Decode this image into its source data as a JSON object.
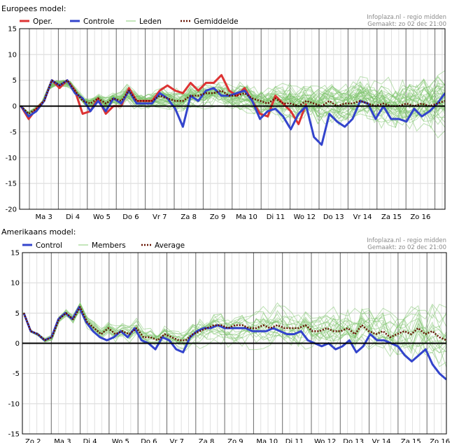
{
  "chart_data": [
    {
      "type": "line",
      "title": "Europees model:",
      "credit_line1": "Infoplaza.nl - regio midden",
      "credit_line2": "Gemaakt: zo 02 dec 21:00",
      "ylim": [
        -20,
        15
      ],
      "yticks": [
        15,
        10,
        5,
        0,
        -5,
        -10,
        -15,
        -20
      ],
      "day_labels": [
        "Ma 3",
        "Di 4",
        "Wo 5",
        "Do 6",
        "Vr 7",
        "Za 8",
        "Zo 9",
        "Ma 10",
        "Di 11",
        "Wo 12",
        "Do 13",
        "Vr 14",
        "Za 15",
        "Zo 16"
      ],
      "grid": true,
      "legend": [
        {
          "label": "Oper.",
          "color": "#dd3333",
          "style": "solid"
        },
        {
          "label": "Controle",
          "color": "#3344cc",
          "style": "solid"
        },
        {
          "label": "Leden",
          "color": "#88cc77",
          "style": "thin"
        },
        {
          "label": "Gemiddelde",
          "color": "#661100",
          "style": "dotted"
        }
      ],
      "series": [
        {
          "name": "Oper.",
          "color": "#dd3333",
          "values": [
            0,
            -2.5,
            -0.5,
            1,
            5,
            3.5,
            5,
            3,
            -1.5,
            -1,
            1.5,
            -1.5,
            0,
            0,
            3.5,
            1,
            1,
            1,
            3,
            4,
            3,
            2.5,
            4.5,
            3,
            4.5,
            4.5,
            6,
            3,
            2,
            3.5,
            1,
            -1.5,
            -2,
            2,
            0.5,
            -1,
            -3.5,
            0.5
          ]
        },
        {
          "name": "Controle",
          "color": "#3344cc",
          "values": [
            0,
            -2,
            -1,
            1,
            5,
            4,
            5,
            2.5,
            1.5,
            -1,
            1,
            -1,
            1.5,
            0.5,
            3,
            0.5,
            0.5,
            0.5,
            2.5,
            1.5,
            -0.5,
            -4,
            2,
            1,
            3,
            3.5,
            2,
            2,
            2.5,
            3,
            1,
            -2.5,
            -1,
            -0.5,
            -2,
            -4.5,
            -1.5,
            0,
            -6,
            -7.5,
            -1.5,
            -3,
            -4,
            -2.5,
            1,
            0.5,
            -2.5,
            0,
            -2.5,
            -2.5,
            -3,
            -0.5,
            -2,
            -1,
            0.5,
            2.5
          ]
        },
        {
          "name": "Gemiddelde",
          "color": "#661100",
          "values": [
            0,
            -1.5,
            -0.5,
            1,
            5,
            4,
            5,
            3,
            1,
            0.5,
            1.5,
            0.5,
            1.5,
            1,
            3,
            1,
            1,
            1,
            2,
            1.5,
            1,
            1,
            2,
            2,
            2.5,
            2.5,
            3,
            2,
            2,
            2.5,
            1.5,
            1,
            0.5,
            1.5,
            0.5,
            0.5,
            0,
            1,
            0.5,
            0,
            1,
            0,
            0.5,
            0.5,
            1,
            0.5,
            0,
            0.5,
            0,
            0,
            0.5,
            0,
            0.5,
            0,
            0.5,
            1
          ]
        }
      ]
    },
    {
      "type": "line",
      "title": "Amerikaans model:",
      "credit_line1": "Infoplaza.nl - regio midden",
      "credit_line2": "Gemaakt: zo 02 dec 21:00",
      "ylim": [
        -15,
        15
      ],
      "yticks": [
        15,
        10,
        5,
        0,
        -5,
        -10,
        -15
      ],
      "day_labels": [
        "Zo 2",
        "Ma 3",
        "Di 4",
        "Wo 5",
        "Do 6",
        "Vr 7",
        "Za 8",
        "Zo 9",
        "Ma 10",
        "Di 11",
        "Wo 12",
        "Do 13",
        "Vr 14",
        "Za 15",
        "Zo 16"
      ],
      "grid": true,
      "legend": [
        {
          "label": "Control",
          "color": "#3344cc",
          "style": "solid"
        },
        {
          "label": "Members",
          "color": "#88cc77",
          "style": "thin"
        },
        {
          "label": "Average",
          "color": "#661100",
          "style": "dotted"
        }
      ],
      "series": [
        {
          "name": "Control",
          "color": "#3344cc",
          "values": [
            5,
            2,
            1.5,
            0.5,
            1,
            4,
            5,
            4,
            6,
            3.5,
            2,
            1,
            0.5,
            1,
            2,
            1,
            2.5,
            0.5,
            0,
            -1,
            1,
            0.5,
            -1,
            -1.5,
            1,
            2,
            2.5,
            2.5,
            3,
            2.5,
            2.5,
            2.5,
            2.5,
            2,
            2,
            2,
            2.5,
            2,
            1.5,
            1.5,
            2,
            0.5,
            0,
            -0.5,
            0,
            -1,
            -0.5,
            0.5,
            -1.5,
            -0.5,
            1.5,
            0.5,
            0.5,
            0,
            -0.5,
            -2,
            -3,
            -2,
            -1,
            -3.5,
            -5,
            -6
          ]
        },
        {
          "name": "Average",
          "color": "#661100",
          "values": [
            5,
            2,
            1.5,
            0.5,
            1,
            4,
            5,
            4,
            6,
            3.5,
            2.5,
            1.5,
            2.5,
            1.5,
            2,
            1.5,
            2.5,
            1,
            1,
            0.5,
            1.5,
            1,
            0.5,
            0.5,
            1.5,
            2,
            2.5,
            3,
            3,
            2.5,
            3,
            3,
            2.5,
            2.5,
            3,
            2.5,
            3,
            2.5,
            2.5,
            2.5,
            3,
            2,
            2,
            2.5,
            2,
            2,
            2.5,
            1.5,
            3,
            2,
            1.5,
            2,
            1,
            1.5,
            2,
            1.5,
            2.5,
            1.5,
            2,
            1,
            0.5
          ]
        }
      ]
    }
  ]
}
